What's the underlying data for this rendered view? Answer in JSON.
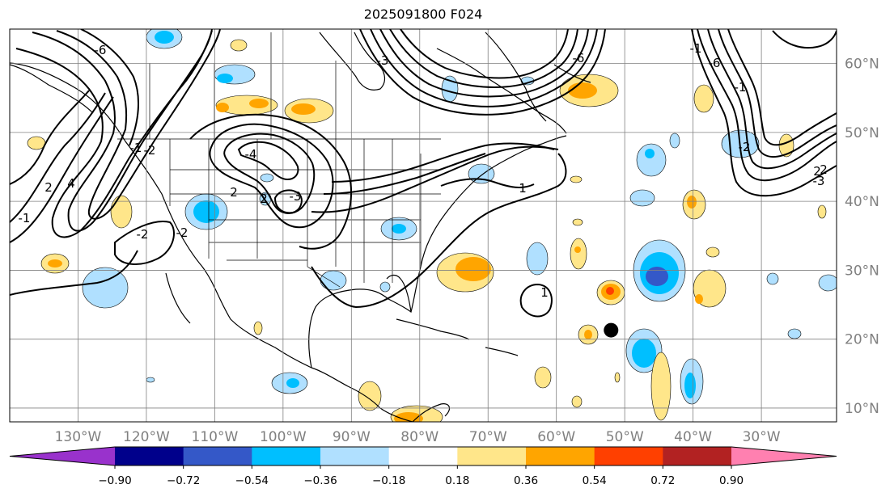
{
  "title": "2025091800 F024",
  "map": {
    "lon_min": -140,
    "lon_max": -19,
    "lat_min": 8,
    "lat_max": 65,
    "lon_gridlines": [
      -130,
      -120,
      -110,
      -100,
      -90,
      -80,
      -70,
      -60,
      -50,
      -40,
      -30
    ],
    "lat_gridlines": [
      10,
      20,
      30,
      40,
      50,
      60
    ],
    "lon_labels": [
      "130°W",
      "120°W",
      "110°W",
      "100°W",
      "90°W",
      "80°W",
      "70°W",
      "60°W",
      "50°W",
      "40°W",
      "30°W"
    ],
    "lat_labels": [
      "10°N",
      "20°N",
      "30°N",
      "40°N",
      "50°N",
      "60°N"
    ],
    "marker": {
      "lon": -52.0,
      "lat": 21.3,
      "name": "storm-center"
    },
    "contour_labels": [
      "-1",
      "-1",
      "-2",
      "2",
      "4",
      "-6",
      "-2",
      "2",
      "-4",
      "-3",
      "2",
      "-2",
      "1",
      "1",
      "-3",
      "-6",
      "-6",
      "-1",
      "-1",
      "-2",
      "-3",
      "2",
      "2"
    ]
  },
  "colorbar": {
    "bounds": [
      "−0.90",
      "−0.72",
      "−0.54",
      "−0.36",
      "−0.18",
      "0.18",
      "0.36",
      "0.54",
      "0.72",
      "0.90"
    ],
    "colors": [
      "#9932cc",
      "#00008b",
      "#3458c8",
      "#00bfff",
      "#b0e0ff",
      "#ffffff",
      "#ffe68a",
      "#ffa500",
      "#ff4000",
      "#b22222",
      "#ff80b0"
    ]
  }
}
